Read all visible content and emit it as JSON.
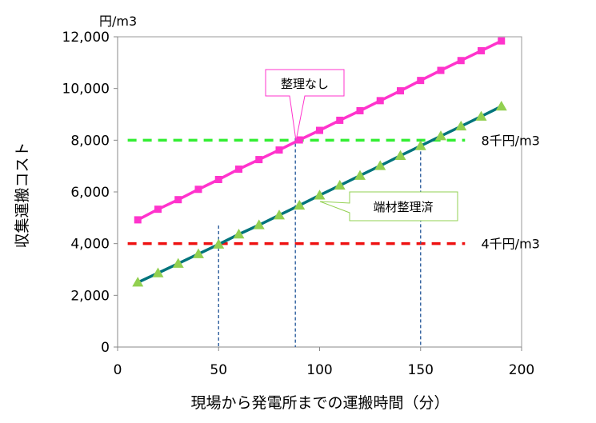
{
  "chart_data": {
    "type": "line",
    "title": "",
    "xlabel": "現場から発電所までの運搬時間（分）",
    "ylabel": "収集運搬コスト",
    "y_unit": "円/m3",
    "xlim": [
      0,
      200
    ],
    "ylim": [
      0,
      12000
    ],
    "x_ticks": [
      "0",
      "50",
      "100",
      "150",
      "200"
    ],
    "y_ticks": [
      "0",
      "2,000",
      "4,000",
      "6,000",
      "8,000",
      "10,000",
      "12,000"
    ],
    "x_tick_values": [
      0,
      50,
      100,
      150,
      200
    ],
    "y_tick_values": [
      0,
      2000,
      4000,
      6000,
      8000,
      10000,
      12000
    ],
    "grid": false,
    "x": [
      10,
      20,
      30,
      40,
      50,
      60,
      70,
      80,
      90,
      100,
      110,
      120,
      130,
      140,
      150,
      160,
      170,
      180,
      190
    ],
    "series": [
      {
        "name": "整理なし",
        "color": "#ff33cc",
        "marker": "square",
        "values": [
          4920,
          5330,
          5700,
          6100,
          6480,
          6880,
          7250,
          7620,
          8010,
          8380,
          8770,
          9140,
          9530,
          9910,
          10310,
          10700,
          11080,
          11460,
          11840
        ]
      },
      {
        "name": "端材整理済",
        "color": "#00747c",
        "marker": "triangle",
        "marker_color": "#92d050",
        "values": [
          2500,
          2860,
          3230,
          3600,
          3970,
          4360,
          4720,
          5100,
          5480,
          5870,
          6250,
          6630,
          7010,
          7400,
          7780,
          8160,
          8540,
          8920,
          9310
        ]
      }
    ],
    "reference_lines": [
      {
        "y": 8000,
        "label": "8千円/m3",
        "color": "#33ee33"
      },
      {
        "y": 4000,
        "label": "4千円/m3",
        "color": "#ee1111"
      }
    ],
    "vertical_guides": [
      {
        "x": 50,
        "y_top": 4700
      },
      {
        "x": 88,
        "y_top": 8300
      },
      {
        "x": 150,
        "y_top": 8000
      }
    ],
    "vertical_guide_color": "#2e5f9e",
    "annotations": [
      {
        "text": "整理なし",
        "series": "整理なし",
        "border": "#ff33cc"
      },
      {
        "text": "端材整理済",
        "series": "端材整理済",
        "border": "#92d050"
      }
    ]
  }
}
